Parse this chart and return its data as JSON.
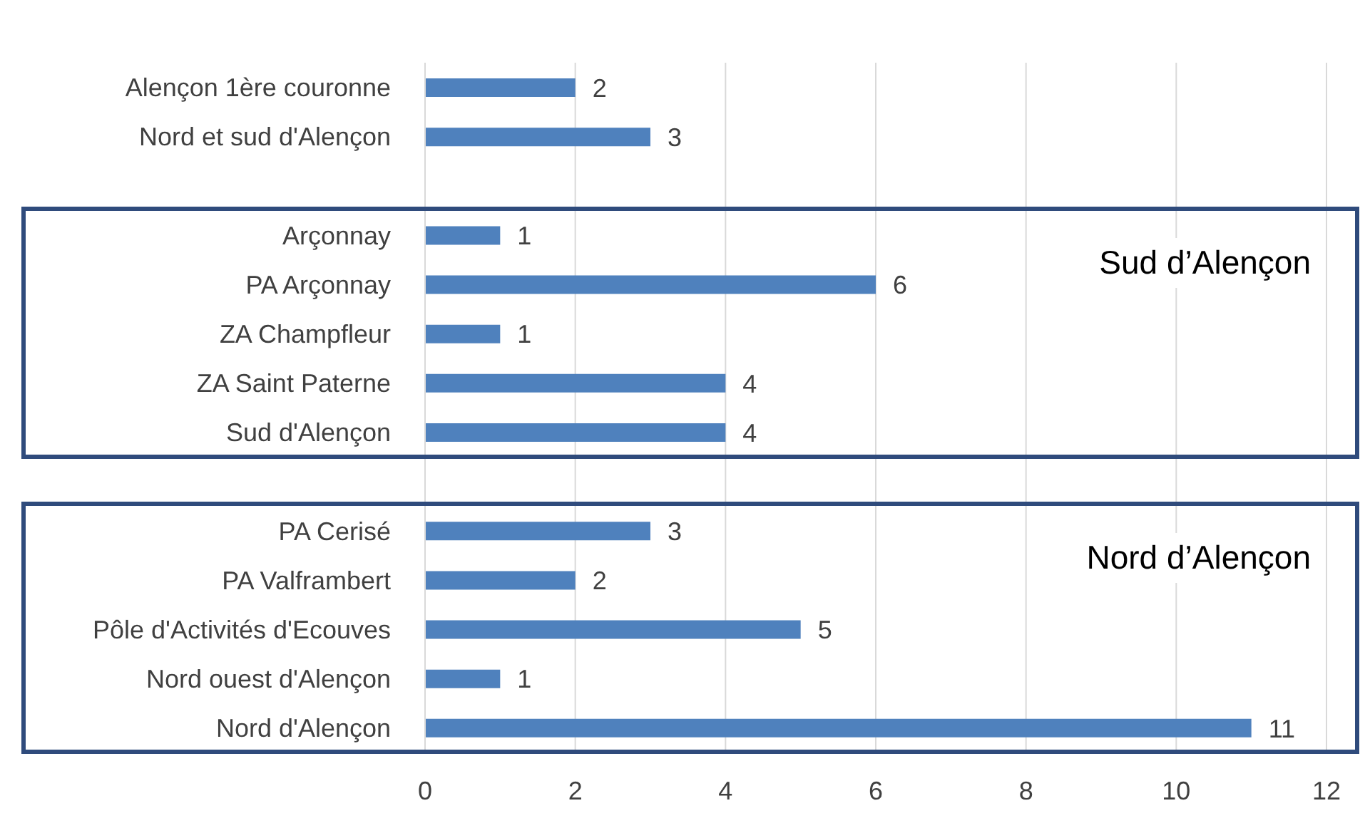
{
  "chart_data": {
    "type": "bar",
    "orientation": "horizontal",
    "categories": [
      "Alençon 1ère couronne",
      "Nord et sud d'Alençon",
      null,
      "Arçonnay",
      "PA Arçonnay",
      "ZA Champfleur",
      "ZA Saint Paterne",
      "Sud d'Alençon",
      null,
      "PA Cerisé",
      "PA Valframbert",
      "Pôle d'Activités d'Ecouves",
      "Nord ouest d'Alençon",
      "Nord d'Alençon"
    ],
    "values": [
      2,
      3,
      null,
      1,
      6,
      1,
      4,
      4,
      null,
      3,
      2,
      5,
      1,
      11
    ],
    "color": "#4f81bd",
    "xlim": [
      0,
      12
    ],
    "xticks": [
      0,
      2,
      4,
      6,
      8,
      10,
      12
    ],
    "grid": "x",
    "data_labels": true,
    "annotations": [
      "Sud d’Alençon",
      "Nord d’Alençon"
    ]
  }
}
